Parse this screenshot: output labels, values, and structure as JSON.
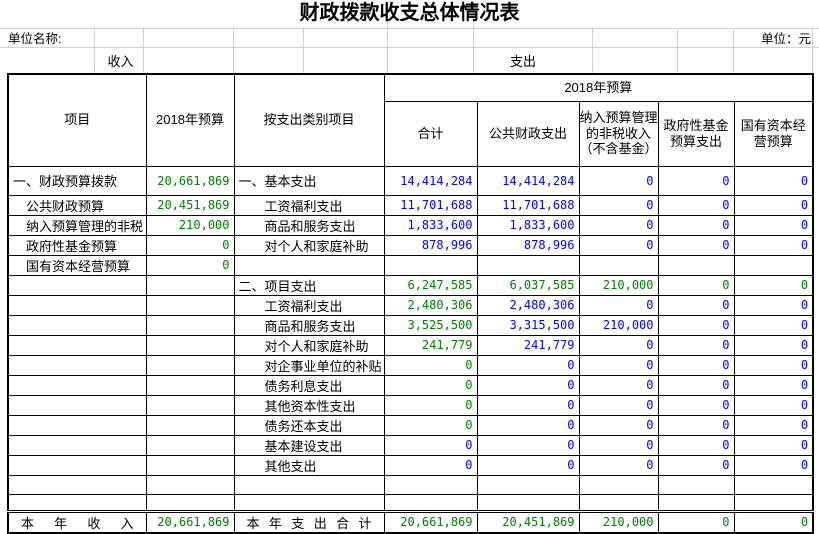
{
  "title": "财政拨款收支总体情况表",
  "unit": {
    "name_label": "单位名称:",
    "unit_label": "单位：元"
  },
  "band": {
    "income": "收入",
    "expenditure": "支出"
  },
  "header": {
    "item": "项目",
    "income_budget": "2018年预算",
    "category": "按支出类别项目",
    "budget_band": "2018年预算",
    "expense_cols": [
      "合计",
      "公共财政支出",
      "纳入预算管理的非税收入（不含基金）",
      "政府性基金预算支出",
      "国有资本经营预算"
    ]
  },
  "colors": {
    "value_green": "#008000",
    "value_blue": "#0000ff",
    "grid_line": "#ccd3dd",
    "border": "#000000"
  },
  "rows": [
    {
      "income_label": "一、财政预算拨款",
      "income_indent": 0,
      "income_value": "20,661,869",
      "expense_label": "一、基本支出",
      "expense_indent": 0,
      "values": [
        "14,414,284",
        "14,414,284",
        "0",
        "0",
        "0"
      ],
      "value_colors": [
        "blue",
        "blue",
        "blue",
        "blue",
        "blue"
      ]
    },
    {
      "income_label": "公共财政预算",
      "income_indent": 1,
      "income_value": "20,451,869",
      "expense_label": "工资福利支出",
      "expense_indent": 1,
      "values": [
        "11,701,688",
        "11,701,688",
        "0",
        "0",
        "0"
      ],
      "value_colors": [
        "blue",
        "blue",
        "blue",
        "blue",
        "blue"
      ]
    },
    {
      "income_label": "纳入预算管理的非税",
      "income_indent": 1,
      "income_value": "210,000",
      "expense_label": "商品和服务支出",
      "expense_indent": 1,
      "values": [
        "1,833,600",
        "1,833,600",
        "0",
        "0",
        "0"
      ],
      "value_colors": [
        "blue",
        "blue",
        "blue",
        "blue",
        "blue"
      ]
    },
    {
      "income_label": "政府性基金预算",
      "income_indent": 1,
      "income_value": "0",
      "expense_label": "对个人和家庭补助",
      "expense_indent": 1,
      "values": [
        "878,996",
        "878,996",
        "0",
        "0",
        "0"
      ],
      "value_colors": [
        "blue",
        "blue",
        "blue",
        "blue",
        "blue"
      ]
    },
    {
      "income_label": "国有资本经营预算",
      "income_indent": 1,
      "income_value": "0",
      "expense_label": "",
      "expense_indent": 0,
      "values": [
        "",
        "",
        "",
        "",
        ""
      ],
      "value_colors": [
        "",
        "",
        "",
        "",
        ""
      ]
    },
    {
      "income_label": "",
      "income_indent": 0,
      "income_value": "",
      "expense_label": "二、项目支出",
      "expense_indent": 0,
      "values": [
        "6,247,585",
        "6,037,585",
        "210,000",
        "0",
        "0"
      ],
      "value_colors": [
        "green",
        "green",
        "green",
        "green",
        "green"
      ]
    },
    {
      "income_label": "",
      "income_indent": 0,
      "income_value": "",
      "expense_label": "工资福利支出",
      "expense_indent": 1,
      "values": [
        "2,480,306",
        "2,480,306",
        "0",
        "0",
        "0"
      ],
      "value_colors": [
        "green",
        "blue",
        "blue",
        "blue",
        "blue"
      ]
    },
    {
      "income_label": "",
      "income_indent": 0,
      "income_value": "",
      "expense_label": "商品和服务支出",
      "expense_indent": 1,
      "values": [
        "3,525,500",
        "3,315,500",
        "210,000",
        "0",
        "0"
      ],
      "value_colors": [
        "green",
        "blue",
        "blue",
        "blue",
        "blue"
      ]
    },
    {
      "income_label": "",
      "income_indent": 0,
      "income_value": "",
      "expense_label": "对个人和家庭补助",
      "expense_indent": 1,
      "values": [
        "241,779",
        "241,779",
        "0",
        "0",
        "0"
      ],
      "value_colors": [
        "green",
        "blue",
        "blue",
        "blue",
        "blue"
      ]
    },
    {
      "income_label": "",
      "income_indent": 0,
      "income_value": "",
      "expense_label": "对企事业单位的补贴",
      "expense_indent": 1,
      "values": [
        "0",
        "0",
        "0",
        "0",
        "0"
      ],
      "value_colors": [
        "green",
        "blue",
        "blue",
        "blue",
        "blue"
      ]
    },
    {
      "income_label": "",
      "income_indent": 0,
      "income_value": "",
      "expense_label": "债务利息支出",
      "expense_indent": 1,
      "values": [
        "0",
        "0",
        "0",
        "0",
        "0"
      ],
      "value_colors": [
        "green",
        "blue",
        "blue",
        "blue",
        "blue"
      ]
    },
    {
      "income_label": "",
      "income_indent": 0,
      "income_value": "",
      "expense_label": "其他资本性支出",
      "expense_indent": 1,
      "values": [
        "0",
        "0",
        "0",
        "0",
        "0"
      ],
      "value_colors": [
        "green",
        "blue",
        "blue",
        "blue",
        "blue"
      ]
    },
    {
      "income_label": "",
      "income_indent": 0,
      "income_value": "",
      "expense_label": "债务还本支出",
      "expense_indent": 1,
      "values": [
        "0",
        "0",
        "0",
        "0",
        "0"
      ],
      "value_colors": [
        "green",
        "blue",
        "blue",
        "blue",
        "blue"
      ]
    },
    {
      "income_label": "",
      "income_indent": 0,
      "income_value": "",
      "expense_label": "基本建设支出",
      "expense_indent": 1,
      "values": [
        "0",
        "0",
        "0",
        "0",
        "0"
      ],
      "value_colors": [
        "blue",
        "blue",
        "blue",
        "blue",
        "blue"
      ]
    },
    {
      "income_label": "",
      "income_indent": 0,
      "income_value": "",
      "expense_label": "其他支出",
      "expense_indent": 1,
      "values": [
        "0",
        "0",
        "0",
        "0",
        "0"
      ],
      "value_colors": [
        "blue",
        "blue",
        "blue",
        "blue",
        "blue"
      ]
    },
    {
      "income_label": "",
      "income_indent": 0,
      "income_value": "",
      "expense_label": "",
      "expense_indent": 0,
      "values": [
        "",
        "",
        "",
        "",
        ""
      ],
      "value_colors": [
        "",
        "",
        "",
        "",
        ""
      ]
    },
    {
      "income_label": "",
      "income_indent": 0,
      "income_value": "",
      "expense_label": "",
      "expense_indent": 0,
      "values": [
        "",
        "",
        "",
        "",
        ""
      ],
      "value_colors": [
        "",
        "",
        "",
        "",
        ""
      ]
    }
  ],
  "totals": {
    "income_label": "本 年 收 入",
    "income_value": "20,661,869",
    "expense_label": "本 年 支 出 合 计",
    "values": [
      "20,661,869",
      "20,451,869",
      "210,000",
      "0",
      "0"
    ]
  }
}
